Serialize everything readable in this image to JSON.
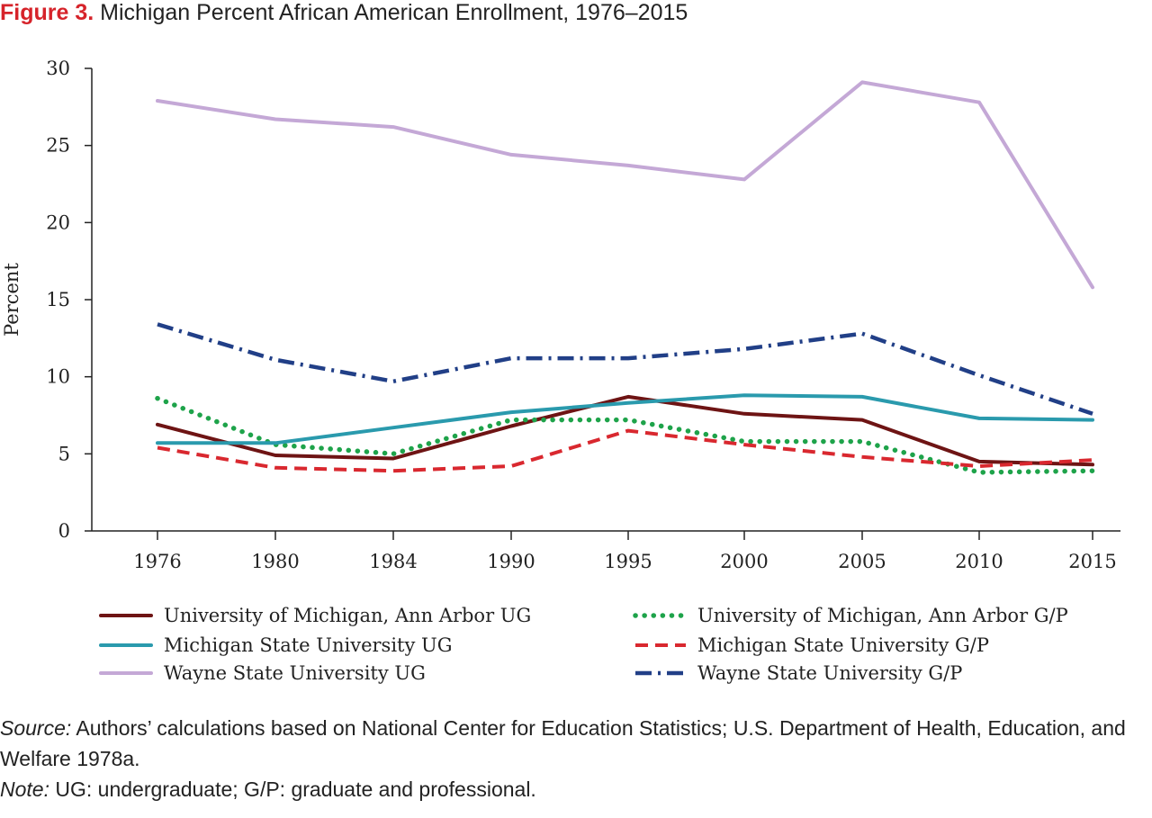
{
  "figure": {
    "label": "Figure 3.",
    "title": "Michigan Percent African American Enrollment, 1976–2015"
  },
  "chart_data": {
    "type": "line",
    "categories": [
      "1976",
      "1980",
      "1984",
      "1990",
      "1995",
      "2000",
      "2005",
      "2010",
      "2015"
    ],
    "ylabel": "Percent",
    "xlabel": "",
    "ylim": [
      0,
      30
    ],
    "yticks": [
      0,
      5,
      10,
      15,
      20,
      25,
      30
    ],
    "grid": false,
    "legend_position": "bottom",
    "series": [
      {
        "name": "University of Michigan, Ann Arbor UG",
        "color": "#6e1414",
        "style": "solid",
        "values": [
          6.9,
          4.9,
          4.7,
          6.8,
          8.7,
          7.6,
          7.2,
          4.5,
          4.3
        ]
      },
      {
        "name": "University of Michigan, Ann Arbor G/P",
        "color": "#1ea34a",
        "style": "dotted",
        "values": [
          8.6,
          5.6,
          5.0,
          7.2,
          7.2,
          5.8,
          5.8,
          3.8,
          3.9
        ]
      },
      {
        "name": "Michigan State University UG",
        "color": "#2a9aad",
        "style": "solid",
        "values": [
          5.7,
          5.7,
          6.7,
          7.7,
          8.3,
          8.8,
          8.7,
          7.3,
          7.2
        ]
      },
      {
        "name": "Michigan State University G/P",
        "color": "#d9282f",
        "style": "dashed",
        "values": [
          5.4,
          4.1,
          3.9,
          4.2,
          6.5,
          5.6,
          4.8,
          4.2,
          4.6
        ]
      },
      {
        "name": "Wayne State University UG",
        "color": "#c4a8d6",
        "style": "solid",
        "values": [
          27.9,
          26.7,
          26.2,
          24.4,
          23.7,
          22.8,
          29.1,
          27.8,
          15.8
        ]
      },
      {
        "name": "Wayne State University G/P",
        "color": "#213f87",
        "style": "dashdot",
        "values": [
          13.4,
          11.1,
          9.7,
          11.2,
          11.2,
          11.8,
          12.8,
          10.1,
          7.6
        ]
      }
    ]
  },
  "notes": {
    "source_label": "Source:",
    "source_text": " Authors’ calculations based on National Center for Education Statistics; U.S. Department of Health, Education, and Welfare 1978a.",
    "note_label": "Note:",
    "note_text": " UG: undergraduate; G/P: graduate and professional."
  }
}
